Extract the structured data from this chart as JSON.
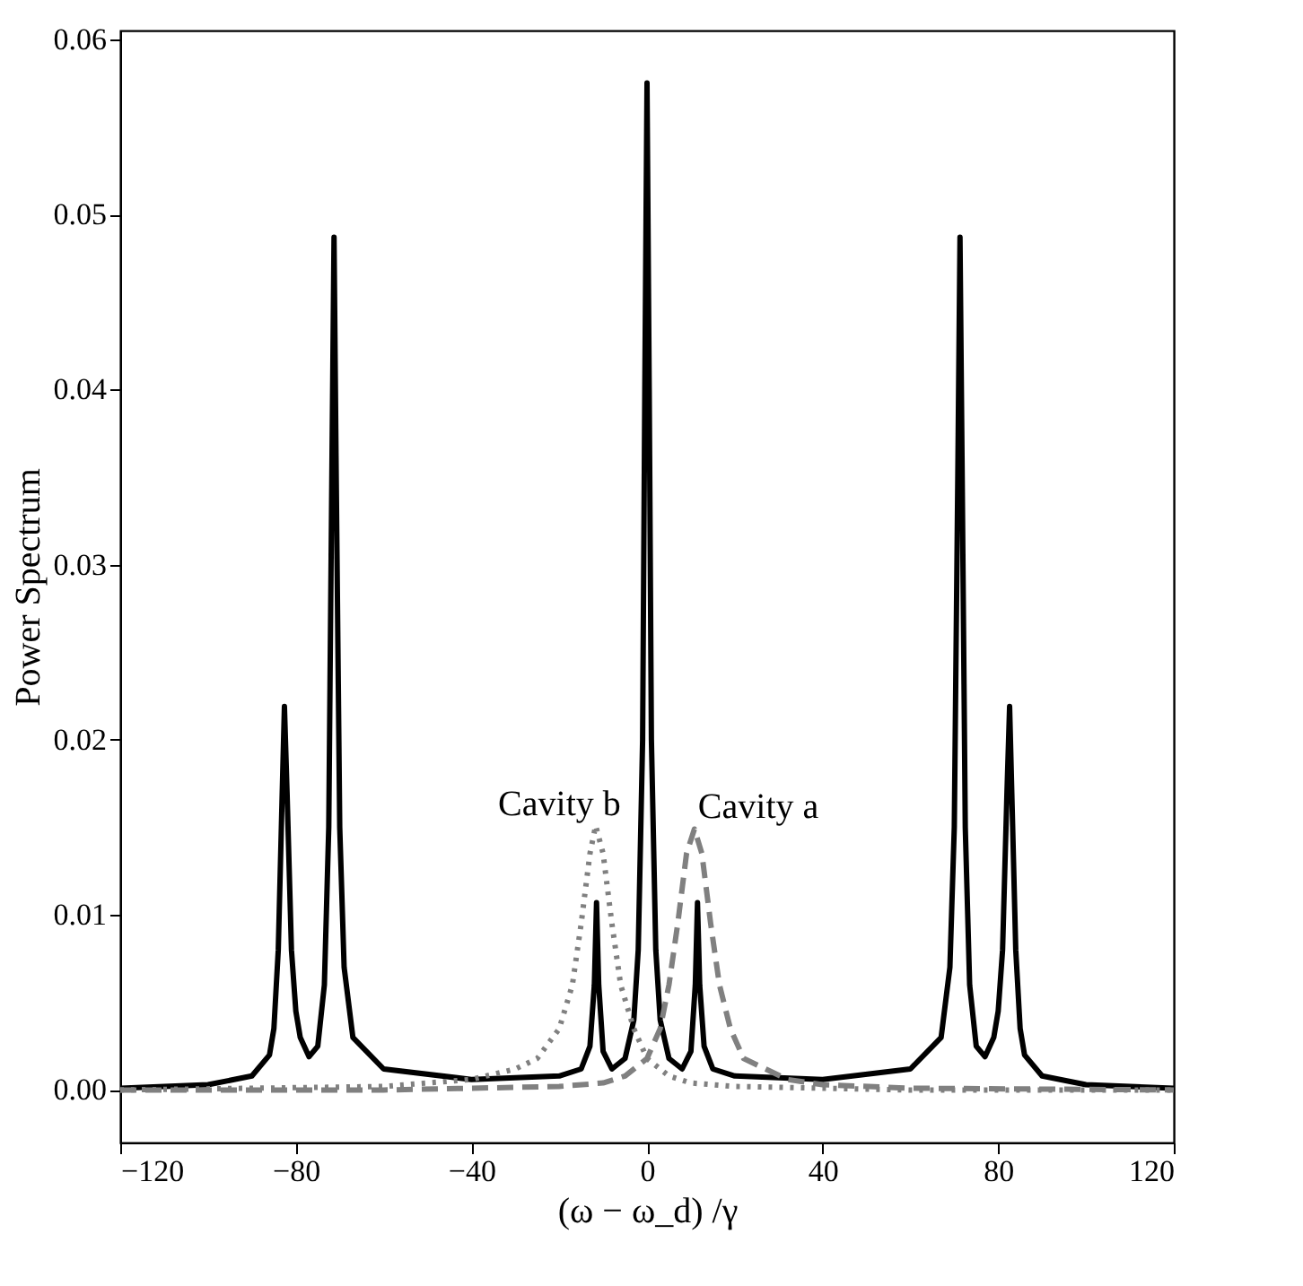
{
  "chart_data": {
    "type": "line",
    "xlabel": "(ω − ω_d) /γ",
    "ylabel": "Power Spectrum",
    "xlim": [
      -120,
      120
    ],
    "xticks": [
      -120,
      -80,
      -40,
      0,
      40,
      80,
      120
    ],
    "ylim": [
      -0.003,
      0.0605
    ],
    "yticks": [
      {
        "value": 0,
        "label": "0.00"
      },
      {
        "value": 0.01,
        "label": "0.01"
      },
      {
        "value": 0.02,
        "label": "0.02"
      },
      {
        "value": 0.03,
        "label": "0.03"
      },
      {
        "value": 0.04,
        "label": "0.04"
      },
      {
        "value": 0.05,
        "label": "0.05"
      },
      {
        "value": 0.06,
        "label": "0.06"
      }
    ],
    "grid": false,
    "marker": "none",
    "series": [
      {
        "color": "#000000",
        "line_style": "solid",
        "x": [
          -120,
          -100,
          -90,
          -86,
          -85,
          -84,
          -83.2,
          -82.6,
          -82,
          -81,
          -80,
          -79,
          -77,
          -75,
          -73.5,
          -72.5,
          -71.8,
          -71.3,
          -70.8,
          -70,
          -69,
          -67,
          -60,
          -40,
          -20,
          -15,
          -13,
          -12,
          -11.5,
          -11,
          -10,
          -8,
          -5,
          -3,
          -2,
          -1,
          -0.5,
          0,
          0.5,
          1,
          2,
          3,
          5,
          8,
          10,
          11,
          11.5,
          12,
          13,
          15,
          20,
          40,
          60,
          67,
          69,
          70,
          70.8,
          71.3,
          71.8,
          72.5,
          73.5,
          75,
          77,
          79,
          80,
          81,
          82,
          82.6,
          83.2,
          84,
          85,
          86,
          90,
          100,
          120
        ],
        "values": [
          0.0001,
          0.0003,
          0.0008,
          0.002,
          0.0035,
          0.008,
          0.016,
          0.0219,
          0.017,
          0.008,
          0.0045,
          0.003,
          0.0019,
          0.0025,
          0.006,
          0.015,
          0.035,
          0.0487,
          0.035,
          0.015,
          0.007,
          0.003,
          0.0012,
          0.0006,
          0.0008,
          0.0012,
          0.0025,
          0.006,
          0.0107,
          0.006,
          0.0022,
          0.0012,
          0.0018,
          0.004,
          0.008,
          0.02,
          0.04,
          0.0575,
          0.04,
          0.02,
          0.008,
          0.004,
          0.0018,
          0.0012,
          0.0022,
          0.006,
          0.0107,
          0.006,
          0.0025,
          0.0012,
          0.0008,
          0.0006,
          0.0012,
          0.003,
          0.007,
          0.015,
          0.035,
          0.0487,
          0.035,
          0.015,
          0.006,
          0.0025,
          0.0019,
          0.003,
          0.0045,
          0.008,
          0.017,
          0.0219,
          0.016,
          0.008,
          0.0035,
          0.002,
          0.0008,
          0.0003,
          0.0001
        ]
      },
      {
        "name": "Cavity b",
        "color": "#808080",
        "line_style": "dotted",
        "x": [
          -120,
          -60,
          -40,
          -30,
          -25,
          -20,
          -17,
          -15,
          -13,
          -11.7,
          -10,
          -8,
          -6,
          -3,
          0,
          5,
          10,
          20,
          40,
          60,
          120
        ],
        "values": [
          0,
          0.0002,
          0.0006,
          0.0012,
          0.0018,
          0.0035,
          0.006,
          0.0095,
          0.0135,
          0.0151,
          0.0135,
          0.0095,
          0.006,
          0.0035,
          0.0018,
          0.0008,
          0.0004,
          0.0002,
          0.0001,
          0,
          0
        ]
      },
      {
        "name": "Cavity a",
        "color": "#808080",
        "line_style": "dashed",
        "x": [
          -120,
          -60,
          -40,
          -20,
          -10,
          -5,
          0,
          3,
          5,
          7,
          9,
          10.8,
          12.5,
          14.5,
          16.5,
          19,
          22,
          27,
          32,
          40,
          60,
          120
        ],
        "values": [
          0,
          0,
          0.0001,
          0.0002,
          0.0004,
          0.0008,
          0.0018,
          0.0035,
          0.006,
          0.0095,
          0.0135,
          0.0149,
          0.0135,
          0.0095,
          0.006,
          0.0035,
          0.0018,
          0.0012,
          0.0006,
          0.0003,
          0.0001,
          0
        ]
      }
    ]
  }
}
